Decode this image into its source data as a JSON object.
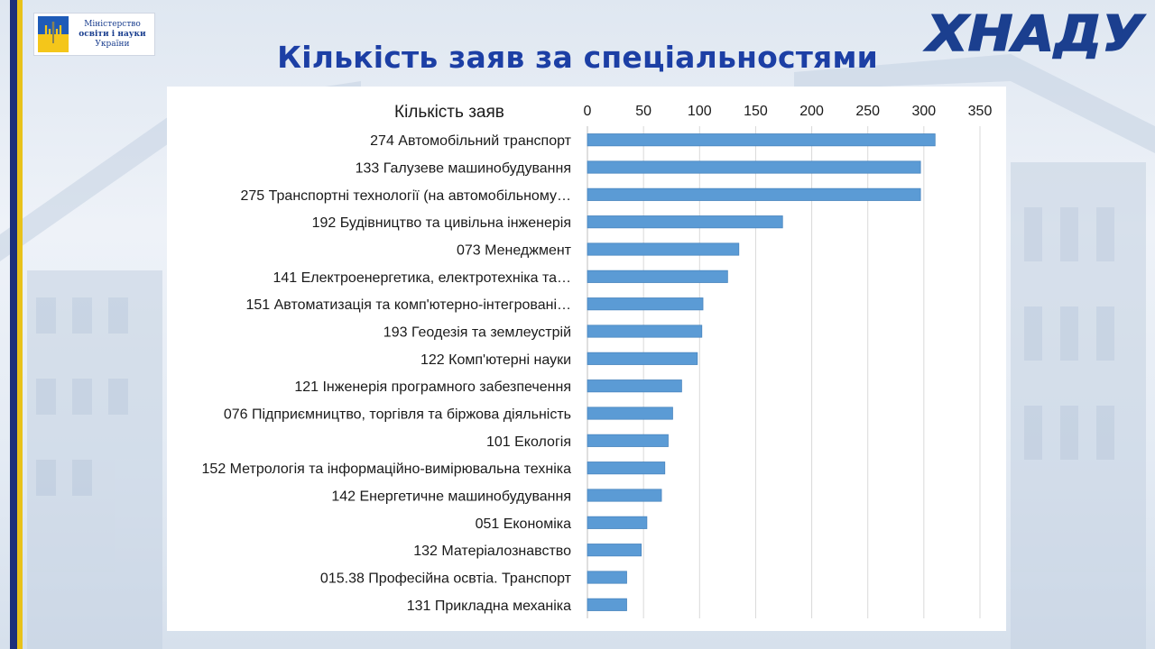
{
  "slide": {
    "title": "Кількість заяв за спеціальностями",
    "ministry_logo": {
      "line1": "Міністерство",
      "line2": "освіти і науки",
      "line3": "України"
    },
    "university_logo": "ХНАДУ"
  },
  "colors": {
    "bar": "#5b9bd5",
    "bar_edge": "#4a86bf",
    "title": "#1c3fa5",
    "logo": "#1b3f8f"
  },
  "chart_data": {
    "type": "bar",
    "orientation": "horizontal",
    "series_name": "Кількість заяв",
    "categories": [
      "274 Автомобільний транспорт",
      "133 Галузеве машинобудування",
      "275 Транспортні технології (на автомобільному…",
      "192 Будівництво та цивільна інженерія",
      "073 Менеджмент",
      "141 Електроенергетика, електротехніка та…",
      "151 Автоматизація та комп'ютерно-інтегровані…",
      "193 Геодезія та землеустрій",
      "122 Комп'ютерні науки",
      "121 Інженерія програмного забезпечення",
      "076 Підприємництво, торгівля та біржова діяльність",
      "101 Екологія",
      "152 Метрологія та інформаційно-вимірювальна техніка",
      "142 Енергетичне машинобудування",
      "051 Економіка",
      "132 Матеріалознавство",
      "015.38 Професійна освтіа. Транспорт",
      "131 Прикладна механіка"
    ],
    "values": [
      310,
      297,
      297,
      174,
      135,
      125,
      103,
      102,
      98,
      84,
      76,
      72,
      69,
      66,
      53,
      48,
      35,
      35
    ],
    "xlim": [
      0,
      350
    ],
    "xticks": [
      0,
      50,
      100,
      150,
      200,
      250,
      300,
      350
    ],
    "xaxis_position": "top",
    "grid": true,
    "legend": "none"
  }
}
